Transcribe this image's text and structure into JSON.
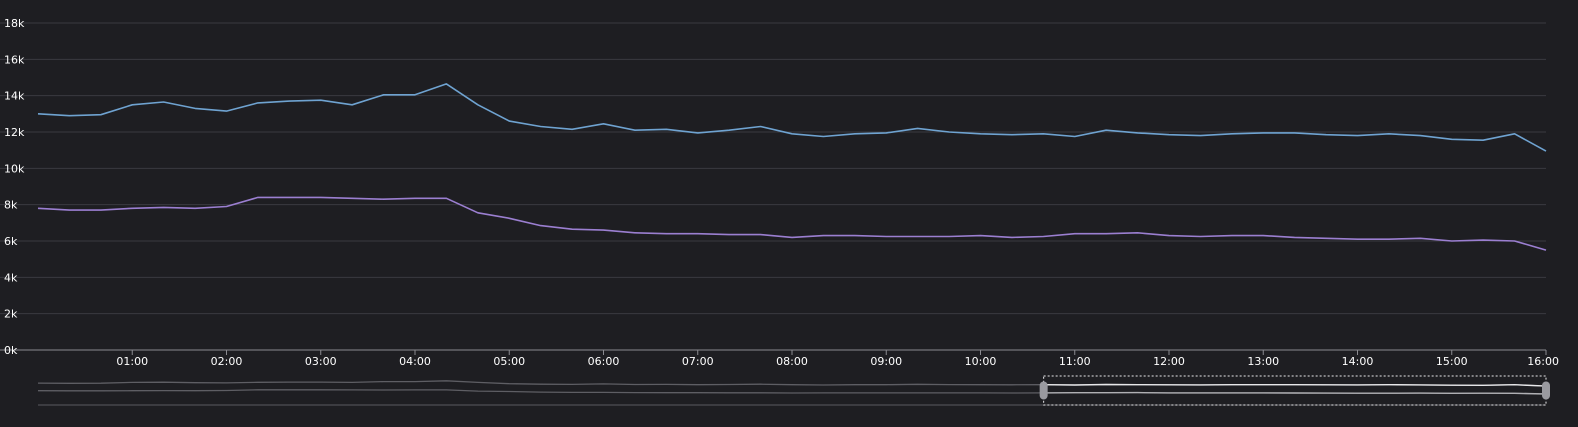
{
  "theme": {
    "background": "#1e1e22",
    "grid": "#3a3a40",
    "axis": "#8a8a90",
    "tick_text": "#ffffff",
    "series_colors": [
      "#6fa3d1",
      "#9b7fd1"
    ]
  },
  "chart_data": {
    "type": "line",
    "title": "",
    "xlabel": "",
    "ylabel": "",
    "ylim": [
      0,
      18000
    ],
    "y_ticks": [
      {
        "value": 0,
        "label": "0k"
      },
      {
        "value": 2000,
        "label": "2k"
      },
      {
        "value": 4000,
        "label": "4k"
      },
      {
        "value": 6000,
        "label": "6k"
      },
      {
        "value": 8000,
        "label": "8k"
      },
      {
        "value": 10000,
        "label": "10k"
      },
      {
        "value": 12000,
        "label": "12k"
      },
      {
        "value": 14000,
        "label": "14k"
      },
      {
        "value": 16000,
        "label": "16k"
      },
      {
        "value": 18000,
        "label": "18k"
      }
    ],
    "x_ticks": [
      "01:00",
      "02:00",
      "03:00",
      "04:00",
      "05:00",
      "06:00",
      "07:00",
      "08:00",
      "09:00",
      "10:00",
      "11:00",
      "12:00",
      "13:00",
      "14:00",
      "15:00",
      "16:00"
    ],
    "xlim_hours": [
      0.0,
      16.0
    ],
    "grid": true,
    "legend": "none",
    "x": [
      0.0,
      0.333,
      0.667,
      1.0,
      1.333,
      1.667,
      2.0,
      2.333,
      2.667,
      3.0,
      3.333,
      3.667,
      4.0,
      4.333,
      4.667,
      5.0,
      5.333,
      5.667,
      6.0,
      6.333,
      6.667,
      7.0,
      7.333,
      7.667,
      8.0,
      8.333,
      8.667,
      9.0,
      9.333,
      9.667,
      10.0,
      10.333,
      10.667,
      11.0,
      11.333,
      11.667,
      12.0,
      12.333,
      12.667,
      13.0,
      13.333,
      13.667,
      14.0,
      14.333,
      14.667,
      15.0,
      15.333,
      15.667,
      16.0
    ],
    "series": [
      {
        "values": [
          13000,
          12900,
          12950,
          13500,
          13650,
          13300,
          13150,
          13600,
          13700,
          13750,
          13500,
          14050,
          14050,
          14650,
          13500,
          12600,
          12300,
          12150,
          12450,
          12100,
          12150,
          11950,
          12100,
          12300,
          11900,
          11750,
          11900,
          11950,
          12200,
          12000,
          11900,
          11850,
          11900,
          11750,
          12100,
          11950,
          11850,
          11800,
          11900,
          11950,
          11950,
          11850,
          11800,
          11900,
          11800,
          11600,
          11550,
          11900,
          10950
        ]
      },
      {
        "values": [
          7800,
          7700,
          7700,
          7800,
          7850,
          7800,
          7900,
          8400,
          8400,
          8400,
          8350,
          8300,
          8350,
          8350,
          7550,
          7250,
          6850,
          6650,
          6600,
          6450,
          6400,
          6400,
          6350,
          6350,
          6200,
          6300,
          6300,
          6250,
          6250,
          6250,
          6300,
          6200,
          6250,
          6400,
          6400,
          6450,
          6300,
          6250,
          6300,
          6300,
          6200,
          6150,
          6100,
          6100,
          6150,
          6000,
          6050,
          6000,
          5500
        ]
      }
    ],
    "overview": {
      "brush_range_hours": [
        10.67,
        16.0
      ]
    }
  }
}
